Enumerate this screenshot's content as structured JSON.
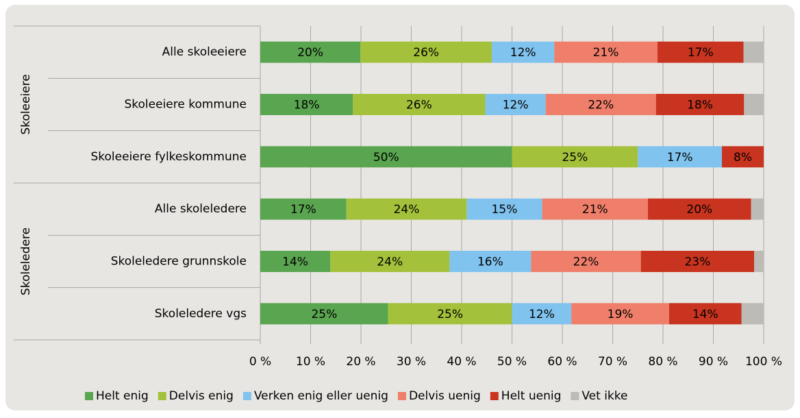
{
  "chart_data": {
    "type": "stacked-bar-horizontal",
    "categories": [
      "Alle skoleeiere",
      "Skoleeiere kommune",
      "Skoleeiere fylkeskommune",
      "Alle skoleledere",
      "Skoleledere grunnskole",
      "Skoleledere vgs"
    ],
    "groups": [
      {
        "name": "Skoleeiere",
        "span": [
          0,
          2
        ]
      },
      {
        "name": "Skoleledere",
        "span": [
          3,
          5
        ]
      }
    ],
    "series": [
      {
        "name": "Helt enig",
        "color": "#5aa550",
        "values": [
          19.9,
          18.4,
          50,
          17.1,
          13.9,
          25.4
        ],
        "value_labels": [
          "20%",
          "18%",
          "50%",
          "17%",
          "14%",
          "25%"
        ]
      },
      {
        "name": "Delvis enig",
        "color": "#a3c13a",
        "values": [
          26.1,
          26.3,
          25,
          23.9,
          23.7,
          24.6
        ],
        "value_labels": [
          "26%",
          "26%",
          "25%",
          "24%",
          "24%",
          "25%"
        ]
      },
      {
        "name": "Verken enig eller uenig",
        "color": "#80c3ee",
        "values": [
          12.4,
          12.0,
          16.7,
          15.0,
          16.2,
          11.8
        ],
        "value_labels": [
          "12%",
          "12%",
          "17%",
          "15%",
          "16%",
          "12%"
        ]
      },
      {
        "name": "Delvis uenig",
        "color": "#ef7f6a",
        "values": [
          20.5,
          21.9,
          0,
          21.0,
          21.8,
          19.4
        ],
        "value_labels": [
          "21%",
          "22%",
          null,
          "21%",
          "22%",
          "19%"
        ]
      },
      {
        "name": "Helt uenig",
        "color": "#c8341f",
        "values": [
          17.1,
          17.5,
          8.3,
          20.5,
          22.5,
          14.4
        ],
        "value_labels": [
          "17%",
          "18%",
          "8%",
          "20%",
          "23%",
          "14%"
        ]
      },
      {
        "name": "Vet ikke",
        "color": "#bdbbb6",
        "values": [
          3.9,
          3.9,
          0,
          2.5,
          1.9,
          4.4
        ],
        "value_labels": [
          null,
          null,
          null,
          null,
          null,
          null
        ]
      }
    ],
    "xlim": [
      0,
      100
    ],
    "xticks": [
      {
        "value": 0,
        "label": "0 %"
      },
      {
        "value": 10,
        "label": "10 %"
      },
      {
        "value": 20,
        "label": "20 %"
      },
      {
        "value": 30,
        "label": "30 %"
      },
      {
        "value": 40,
        "label": "40 %"
      },
      {
        "value": 50,
        "label": "50 %"
      },
      {
        "value": 60,
        "label": "60 %"
      },
      {
        "value": 70,
        "label": "70 %"
      },
      {
        "value": 80,
        "label": "80 %"
      },
      {
        "value": 90,
        "label": "90 %"
      },
      {
        "value": 100,
        "label": "100 %"
      }
    ],
    "grid": true,
    "legend": "bottom"
  }
}
